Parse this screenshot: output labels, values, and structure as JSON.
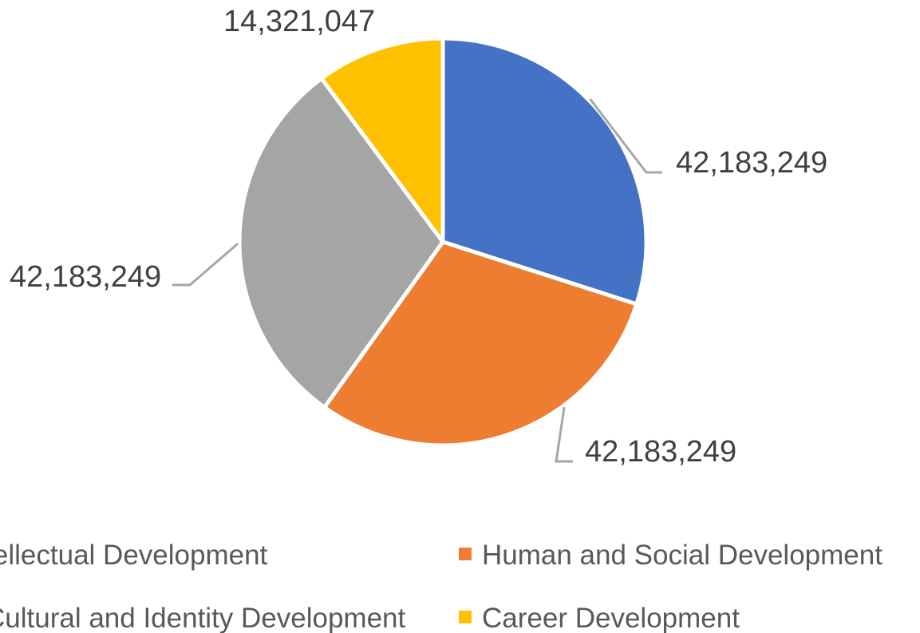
{
  "chart_data": {
    "type": "pie",
    "title": "",
    "series": [
      {
        "categories": [
          "Intellectual Development",
          "Human and Social Development",
          "Cultural and Identity Development",
          "Career Development"
        ],
        "values": [
          42183249,
          42183249,
          42183249,
          14321047
        ],
        "data_labels": [
          "42,183,249",
          "42,183,249",
          "42,183,249",
          "14,321,047"
        ],
        "colors": [
          "#4472C4",
          "#ED7D31",
          "#A5A5A5",
          "#FFC000"
        ]
      }
    ],
    "start_angle_deg": 0,
    "direction": "clockwise",
    "legend_position": "bottom"
  }
}
